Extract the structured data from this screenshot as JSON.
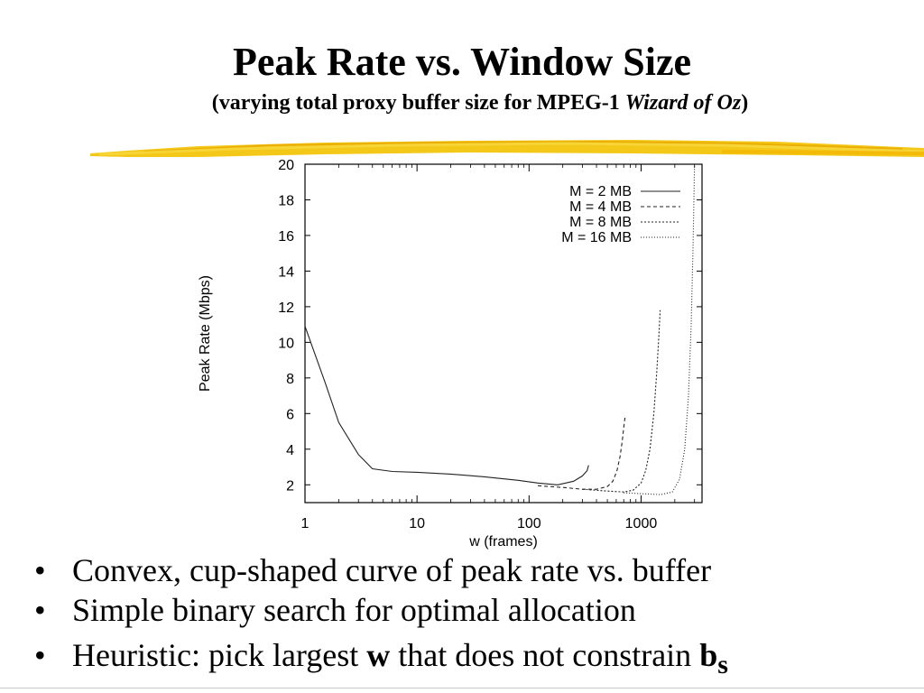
{
  "slide": {
    "title": "Peak Rate vs. Window Size",
    "subtitle_prefix": "(varying total proxy buffer size for MPEG-1 ",
    "subtitle_italic": "Wizard of Oz",
    "subtitle_suffix": ")",
    "stripe_color": "#f2c200",
    "bullets": [
      {
        "marker": "•",
        "text": "Convex, cup-shaped curve of peak rate vs. buffer"
      },
      {
        "marker": "•",
        "text": "Simple binary search for optimal allocation"
      },
      {
        "marker": "•",
        "pre": "Heuristic: pick largest ",
        "bold1": "w",
        "mid": " that does not constrain ",
        "bold2": "b",
        "sub": "s"
      }
    ]
  },
  "chart_data": {
    "type": "line",
    "xlabel": "w (frames)",
    "ylabel": "Peak Rate (Mbps)",
    "xscale": "log",
    "xlim": [
      1,
      3500
    ],
    "ylim": [
      1,
      20
    ],
    "xticks": [
      1,
      10,
      100,
      1000
    ],
    "xtick_labels": [
      "1",
      "10",
      "100",
      "1000"
    ],
    "yticks": [
      2,
      4,
      6,
      8,
      10,
      12,
      14,
      16,
      18,
      20
    ],
    "ytick_labels": [
      "2",
      "4",
      "6",
      "8",
      "10",
      "12",
      "14",
      "16",
      "18",
      "20"
    ],
    "grid": false,
    "legend_position": "top-right",
    "series": [
      {
        "name": "M = 2 MB",
        "style": "solid",
        "x": [
          1,
          1.5,
          2,
          3,
          4,
          6,
          10,
          20,
          40,
          80,
          120,
          180,
          250,
          300,
          330,
          340
        ],
        "y": [
          10.9,
          7.8,
          5.5,
          3.7,
          2.9,
          2.75,
          2.7,
          2.6,
          2.45,
          2.25,
          2.1,
          2.0,
          2.2,
          2.5,
          2.8,
          3.1
        ]
      },
      {
        "name": "M = 4 MB",
        "style": "dashed",
        "x": [
          120,
          200,
          300,
          400,
          500,
          560,
          610,
          650,
          680,
          700,
          720
        ],
        "y": [
          1.95,
          1.85,
          1.75,
          1.75,
          1.9,
          2.2,
          2.8,
          3.6,
          4.5,
          5.2,
          5.8
        ]
      },
      {
        "name": "M = 8 MB",
        "style": "short-dashed",
        "x": [
          300,
          500,
          700,
          850,
          1000,
          1100,
          1200,
          1300,
          1380,
          1440,
          1480
        ],
        "y": [
          1.75,
          1.65,
          1.6,
          1.7,
          2.1,
          2.8,
          4.0,
          6.0,
          8.3,
          10.3,
          11.8
        ]
      },
      {
        "name": "M = 16 MB",
        "style": "dotted",
        "x": [
          700,
          1000,
          1500,
          1900,
          2200,
          2450,
          2650,
          2800,
          2900,
          2960,
          3000
        ],
        "y": [
          1.55,
          1.5,
          1.45,
          1.6,
          2.3,
          4.0,
          7.0,
          11.0,
          15.0,
          18.0,
          20.0
        ]
      }
    ]
  }
}
